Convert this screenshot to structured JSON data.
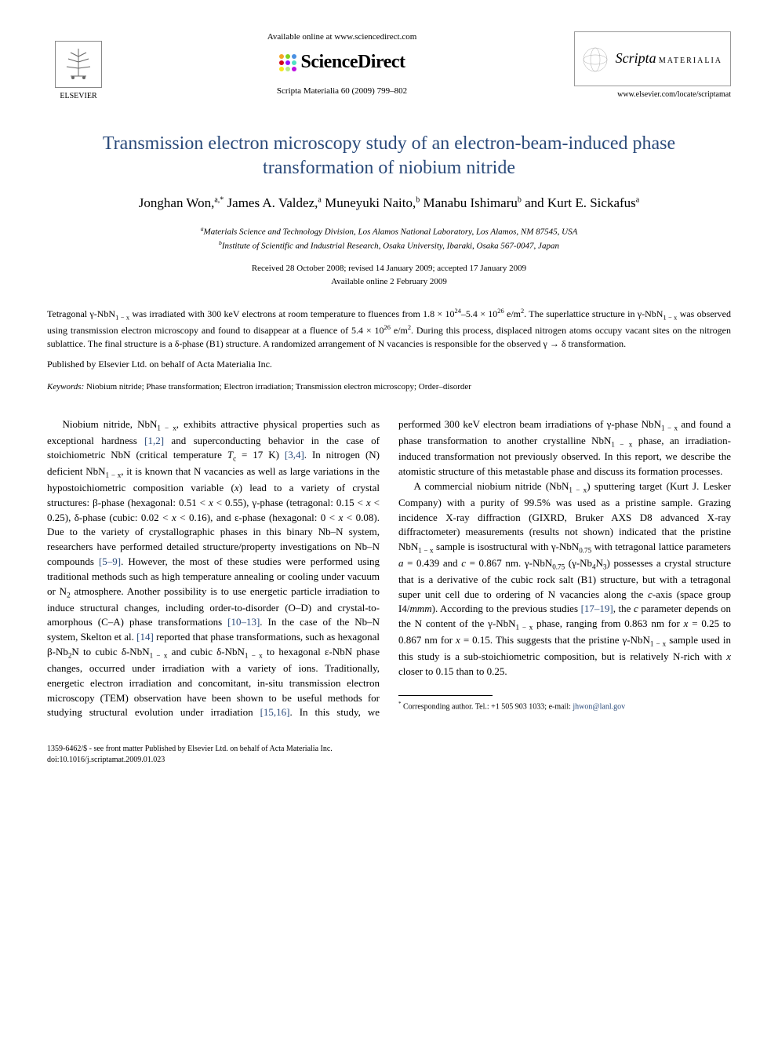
{
  "header": {
    "elsevier_label": "ELSEVIER",
    "available_online": "Available online at www.sciencedirect.com",
    "sciencedirect": "ScienceDirect",
    "sd_dot_colors": [
      "#f5a623",
      "#7ed321",
      "#4a90e2",
      "#d0021b",
      "#9013fe",
      "#50e3c2",
      "#f8e71c",
      "#b8e986",
      "#bd10e0"
    ],
    "journal_ref": "Scripta Materialia 60 (2009) 799–802",
    "scripta_title": "Scripta",
    "scripta_sub": "MATERIALIA",
    "journal_url": "www.elsevier.com/locate/scriptamat"
  },
  "title": "Transmission electron microscopy study of an electron-beam-induced phase transformation of niobium nitride",
  "authors_html": "Jonghan Won,<sup>a,*</sup> James A. Valdez,<sup>a</sup> Muneyuki Naito,<sup>b</sup> Manabu Ishimaru<sup>b</sup> and Kurt E. Sickafus<sup>a</sup>",
  "affiliations": {
    "a": "Materials Science and Technology Division, Los Alamos National Laboratory, Los Alamos, NM 87545, USA",
    "b": "Institute of Scientific and Industrial Research, Osaka University, Ibaraki, Osaka 567-0047, Japan"
  },
  "dates": {
    "received": "Received 28 October 2008; revised 14 January 2009; accepted 17 January 2009",
    "online": "Available online 2 February 2009"
  },
  "abstract_html": "Tetragonal γ-NbN<sub>1 − x</sub> was irradiated with 300 keV electrons at room temperature to fluences from 1.8 × 10<sup>24</sup>–5.4 × 10<sup>26</sup> e/m<sup>2</sup>. The superlattice structure in γ-NbN<sub>1 − x</sub> was observed using transmission electron microscopy and found to disappear at a fluence of 5.4 × 10<sup>26</sup> e/m<sup>2</sup>. During this process, displaced nitrogen atoms occupy vacant sites on the nitrogen sublattice. The final structure is a δ-phase (B1) structure. A randomized arrangement of N vacancies is responsible for the observed γ → δ transformation.",
  "publisher_note": "Published by Elsevier Ltd. on behalf of Acta Materialia Inc.",
  "keywords_label": "Keywords:",
  "keywords": "Niobium nitride; Phase transformation; Electron irradiation; Transmission electron microscopy; Order–disorder",
  "body": {
    "p1_html": "Niobium nitride, NbN<sub>1 − x</sub>, exhibits attractive physical properties such as exceptional hardness <span class=\"ref-link\">[1,2]</span> and superconducting behavior in the case of stoichiometric NbN (critical temperature <i>T</i><sub>c</sub> = 17 K) <span class=\"ref-link\">[3,4]</span>. In nitrogen (N) deficient NbN<sub>1 − x</sub>, it is known that N vacancies as well as large variations in the hypostoichiometric composition variable (<i>x</i>) lead to a variety of crystal structures: β-phase (hexagonal: 0.51 < <i>x</i> < 0.55), γ-phase (tetragonal: 0.15 < <i>x</i> < 0.25), δ-phase (cubic: 0.02 < <i>x</i> < 0.16), and ε-phase (hexagonal: 0 < <i>x</i> < 0.08). Due to the variety of crystallographic phases in this binary Nb–N system, researchers have performed detailed structure/property investigations on Nb–N compounds <span class=\"ref-link\">[5–9]</span>. However, the most of these studies were performed using traditional methods such as high temperature annealing or cooling under vacuum or N<sub>2</sub> atmosphere. Another possibility is to use energetic particle irradiation to induce structural changes, including order-to-disorder (O–D) and crystal-to-amorphous (C–A) phase transformations <span class=\"ref-link\">[10–13]</span>. In the case of the Nb–N system, Skelton et al. <span class=\"ref-link\">[14]</span> reported that phase transformations, such as hexagonal β-Nb<sub>2</sub>N to cubic δ-NbN<sub>1 − x</sub> and cubic δ-NbN<sub>1 − x</sub> to hexagonal ε-NbN phase changes, occurred under irradiation with a variety of ions. Traditionally, energetic electron irradiation and concomitant, in-situ transmission electron microscopy (TEM) observation have been shown to be useful methods for studying structural evolution under irradiation <span class=\"ref-link\">[15,16]</span>. In this study, we performed 300 keV electron beam irradiations of γ-phase NbN<sub>1 − x</sub> and found a phase transformation to another crystalline NbN<sub>1 − x</sub> phase, an irradiation-induced transformation not previously observed. In this report, we describe the atomistic structure of this metastable phase and discuss its formation processes.",
    "p2_html": "A commercial niobium nitride (NbN<sub>1 − x</sub>) sputtering target (Kurt J. Lesker Company) with a purity of 99.5% was used as a pristine sample. Grazing incidence X-ray diffraction (GIXRD, Bruker AXS D8 advanced X-ray diffractometer) measurements (results not shown) indicated that the pristine NbN<sub>1 − x</sub> sample is isostructural with γ-NbN<sub>0.75</sub> with tetragonal lattice parameters <i>a</i> = 0.439 and <i>c</i> = 0.867 nm. γ-NbN<sub>0.75</sub> (γ-Nb<sub>4</sub>N<sub>3</sub>) possesses a crystal structure that is a derivative of the cubic rock salt (B1) structure, but with a tetragonal super unit cell due to ordering of N vacancies along the <i>c</i>-axis (space group I4/<i>mmm</i>). According to the previous studies <span class=\"ref-link\">[17–19]</span>, the <i>c</i> parameter depends on the N content of the γ-NbN<sub>1 − x</sub> phase, ranging from 0.863 nm for <i>x</i> = 0.25 to 0.867 nm for <i>x</i> = 0.15. This suggests that the pristine γ-NbN<sub>1 − x</sub> sample used in this study is a sub-stoichiometric composition, but is relatively N-rich with <i>x</i> closer to 0.15 than to 0.25."
  },
  "footnote": {
    "marker": "*",
    "text_prefix": "Corresponding author. Tel.: +1 505 903 1033; e-mail: ",
    "email": "jhwon@lanl.gov"
  },
  "footer": {
    "copyright": "1359-6462/$ - see front matter Published by Elsevier Ltd. on behalf of Acta Materialia Inc.",
    "doi": "doi:10.1016/j.scriptamat.2009.01.023"
  },
  "colors": {
    "title_color": "#2a4a7a",
    "link_color": "#2a4a7a",
    "text_color": "#000000",
    "background": "#ffffff"
  }
}
